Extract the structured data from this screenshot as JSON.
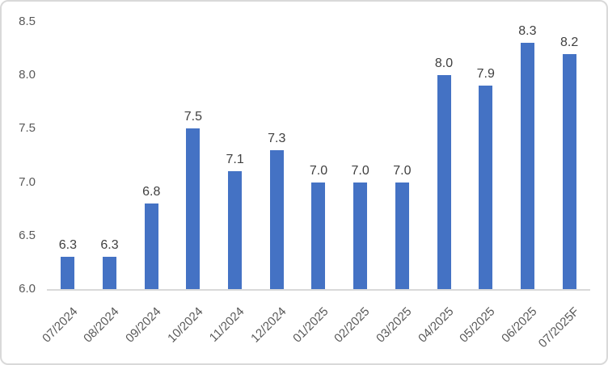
{
  "chart_data": {
    "type": "bar",
    "title": "",
    "xlabel": "",
    "ylabel": "",
    "categories": [
      "07/2024",
      "08/2024",
      "09/2024",
      "10/2024",
      "11/2024",
      "12/2024",
      "01/2025",
      "02/2025",
      "03/2025",
      "04/2025",
      "05/2025",
      "06/2025",
      "07/2025F"
    ],
    "values": [
      6.3,
      6.3,
      6.8,
      7.5,
      7.1,
      7.3,
      7.0,
      7.0,
      7.0,
      8.0,
      7.9,
      8.3,
      8.2
    ],
    "data_labels": [
      "6.3",
      "6.3",
      "6.8",
      "7.5",
      "7.1",
      "7.3",
      "7.0",
      "7.0",
      "7.0",
      "8.0",
      "7.9",
      "8.3",
      "8.2"
    ],
    "ylim": [
      6.0,
      8.5
    ],
    "y_ticks": [
      "6.0",
      "6.5",
      "7.0",
      "7.5",
      "8.0",
      "8.5"
    ],
    "grid": false,
    "legend": "none",
    "colors": {
      "bar": "#4472C4",
      "data_label": "#404040",
      "axis_text": "#595959",
      "axis_line": "#D9D9D9",
      "frame_border": "#D9D9D9",
      "background": "#FFFFFF"
    }
  }
}
